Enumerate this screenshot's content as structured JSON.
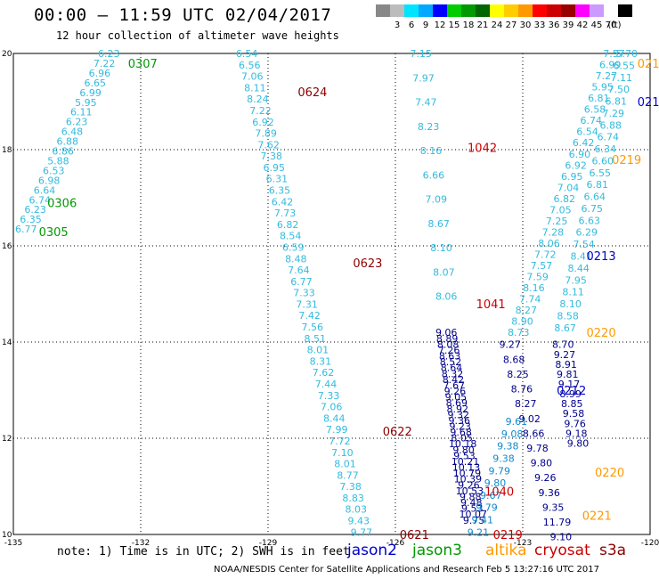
{
  "title": "00:00 – 11:59 UTC 02/04/2017",
  "subtitle": "12 hour collection of altimeter wave heights",
  "color_scale": {
    "unit": "(ft)",
    "swatches": [
      {
        "label": "",
        "color": "#888888"
      },
      {
        "label": "3",
        "color": "#bcbcbc"
      },
      {
        "label": "6",
        "color": "#00e5ff"
      },
      {
        "label": "9",
        "color": "#00a8ff"
      },
      {
        "label": "12",
        "color": "#0000ff"
      },
      {
        "label": "15",
        "color": "#00cc00"
      },
      {
        "label": "18",
        "color": "#009900"
      },
      {
        "label": "21",
        "color": "#006600"
      },
      {
        "label": "24",
        "color": "#ffff00"
      },
      {
        "label": "27",
        "color": "#ffcc00"
      },
      {
        "label": "30",
        "color": "#ff9900"
      },
      {
        "label": "33",
        "color": "#ff0000"
      },
      {
        "label": "36",
        "color": "#cc0000"
      },
      {
        "label": "39",
        "color": "#990000"
      },
      {
        "label": "42",
        "color": "#ff00ff"
      },
      {
        "label": "45",
        "color": "#cc99ff"
      },
      {
        "label": "70",
        "color": "#ffffff"
      },
      {
        "label": "",
        "color": "#000000"
      }
    ]
  },
  "chart_data": {
    "type": "scatter",
    "map_extent": {
      "lon_min": -135,
      "lon_max": -120,
      "lat_min": 10,
      "lat_max": 20
    },
    "lon_ticks": [
      "-135",
      "-132",
      "-129",
      "-126",
      "-123",
      "-120"
    ],
    "lat_ticks": [
      "20",
      "18",
      "16",
      "14",
      "12",
      "10"
    ],
    "colors": {
      "jason2": "#0000cc",
      "jason3": "#009900",
      "altika": "#ff9900",
      "cryosat": "#cc0000",
      "s3a": "#8b0000",
      "light": "#33bbdd",
      "medium": "#1188cc",
      "dark": "#00008b"
    },
    "tracks": [
      {
        "start": [
          -132.75,
          20
        ],
        "end": [
          -134.7,
          16.35
        ],
        "color": "light",
        "values": [
          "6.23",
          "7.22",
          "6.96",
          "6.65",
          "6.99",
          "5.95",
          "6.11",
          "6.23",
          "6.48",
          "6.88",
          "6.86",
          "5.88",
          "6.53",
          "6.98",
          "6.64",
          "6.74",
          "6.23",
          "6.35",
          "6.77"
        ]
      },
      {
        "start": [
          -129.5,
          20
        ],
        "end": [
          -126.8,
          10.05
        ],
        "color": "light",
        "values": [
          "6.54",
          "6.56",
          "7.06",
          "8.11",
          "8.24",
          "7.22",
          "6.92",
          "7.89",
          "7.62",
          "7.38",
          "6.95",
          "6.31",
          "6.35",
          "6.42",
          "7.73",
          "6.82",
          "8.54",
          "6.59",
          "8.48",
          "7.64",
          "6.77",
          "7.33",
          "7.31",
          "7.42",
          "7.56",
          "8.51",
          "8.01",
          "8.31",
          "7.62",
          "7.44",
          "7.33",
          "7.06",
          "8.44",
          "7.99",
          "7.72",
          "7.10",
          "8.01",
          "8.77",
          "7.38",
          "8.83",
          "8.03",
          "9.43",
          "9.77"
        ]
      },
      {
        "start": [
          -125.4,
          20
        ],
        "end": [
          -124.8,
          14.95
        ],
        "color": "light",
        "values": [
          "7.15",
          "7.97",
          "7.47",
          "8.23",
          "8.16",
          "6.66",
          "7.09",
          "8.67",
          "8.10",
          "8.07",
          "8.06"
        ]
      },
      {
        "start": [
          -124.8,
          14.2
        ],
        "end": [
          -124.15,
          10.3
        ],
        "color": "dark",
        "values": [
          "9.06",
          "8.89",
          "8.08",
          "7.26",
          "8.63",
          "8.52",
          "8.64",
          "8.32",
          "8.42",
          "7.67",
          "9.26",
          "9.05",
          "8.69",
          "8.92",
          "9.32",
          "9.36",
          "9.23",
          "9.68",
          "8.05",
          "10.18",
          "9.80",
          "9.53",
          "10.21",
          "10.13",
          "10.79",
          "10.39",
          "9.26",
          "10.53",
          "9.88",
          "9.48",
          "9.53",
          "10.07",
          "9.75"
        ]
      },
      {
        "start": [
          -123.15,
          12.35
        ],
        "end": [
          -124.05,
          10.05
        ],
        "color": "medium",
        "values": [
          "9.61",
          "9.08",
          "9.38",
          "9.38",
          "9.79",
          "9.80",
          "9.67",
          "9.79",
          "9.41",
          "9.21"
        ]
      },
      {
        "start": [
          -120.85,
          20
        ],
        "end": [
          -123.1,
          14.2
        ],
        "color": "light",
        "values": [
          "7.57",
          "6.99",
          "7.27",
          "5.95",
          "6.81",
          "6.58",
          "6.74",
          "6.54",
          "6.42",
          "6.90",
          "6.92",
          "6.95",
          "7.04",
          "6.82",
          "7.05",
          "7.25",
          "7.28",
          "8.06",
          "7.72",
          "7.57",
          "7.59",
          "8.16",
          "7.74",
          "8.27",
          "8.90",
          "8.73"
        ]
      },
      {
        "start": [
          -120.55,
          20
        ],
        "end": [
          -122.0,
          14.3
        ],
        "color": "light",
        "values": [
          "5.70",
          "6.55",
          "7.11",
          "7.50",
          "6.81",
          "7.29",
          "6.88",
          "6.74",
          "6.34",
          "6.60",
          "6.55",
          "6.81",
          "6.64",
          "6.75",
          "6.63",
          "6.29",
          "7.54",
          "8.41",
          "8.44",
          "7.95",
          "8.11",
          "8.10",
          "8.58",
          "8.67"
        ]
      },
      {
        "start": [
          -123.3,
          13.95
        ],
        "end": [
          -122.1,
          9.95
        ],
        "color": "dark",
        "values": [
          "9.27",
          "8.68",
          "8.25",
          "8.76",
          "8.27",
          "9.02",
          "8.66",
          "9.78",
          "9.80",
          "9.26",
          "9.36",
          "9.35",
          "11.79",
          "9.10"
        ]
      },
      {
        "start": [
          -122.05,
          13.95
        ],
        "end": [
          -121.7,
          11.9
        ],
        "color": "dark",
        "values": [
          "8.70",
          "9.27",
          "8.91",
          "9.81",
          "9.17",
          "8.99",
          "8.85",
          "9.58",
          "9.76",
          "9.18",
          "9.80"
        ]
      }
    ],
    "track_labels": [
      {
        "text": "0307",
        "lon": -132.3,
        "lat": 19.8,
        "color": "jason3"
      },
      {
        "text": "0306",
        "lon": -134.2,
        "lat": 16.9,
        "color": "jason3"
      },
      {
        "text": "0305",
        "lon": -134.4,
        "lat": 16.3,
        "color": "jason3"
      },
      {
        "text": "0624",
        "lon": -128.3,
        "lat": 19.2,
        "color": "s3a"
      },
      {
        "text": "0623",
        "lon": -127.0,
        "lat": 15.65,
        "color": "s3a"
      },
      {
        "text": "0622",
        "lon": -126.3,
        "lat": 12.15,
        "color": "s3a"
      },
      {
        "text": "0621",
        "lon": -125.9,
        "lat": 10.0,
        "color": "s3a"
      },
      {
        "text": "1042",
        "lon": -124.3,
        "lat": 18.05,
        "color": "cryosat"
      },
      {
        "text": "1041",
        "lon": -124.1,
        "lat": 14.8,
        "color": "cryosat"
      },
      {
        "text": "1040",
        "lon": -123.9,
        "lat": 10.9,
        "color": "cryosat"
      },
      {
        "text": "0219",
        "lon": -123.7,
        "lat": 10.0,
        "color": "cryosat"
      },
      {
        "text": "021",
        "lon": -120.3,
        "lat": 19.8,
        "color": "altika"
      },
      {
        "text": "021-",
        "lon": -120.3,
        "lat": 19.0,
        "color": "jason2"
      },
      {
        "text": "0219",
        "lon": -120.9,
        "lat": 17.8,
        "color": "altika"
      },
      {
        "text": "0213",
        "lon": -121.5,
        "lat": 15.8,
        "color": "jason2"
      },
      {
        "text": "0220",
        "lon": -121.5,
        "lat": 14.2,
        "color": "altika"
      },
      {
        "text": "0212",
        "lon": -122.2,
        "lat": 13.0,
        "color": "jason2"
      },
      {
        "text": "0220",
        "lon": -121.3,
        "lat": 11.3,
        "color": "altika"
      },
      {
        "text": "0221",
        "lon": -121.6,
        "lat": 10.4,
        "color": "altika"
      }
    ]
  },
  "note": "note: 1) Time is in UTC; 2) SWH is in feet",
  "satellites": [
    {
      "name": "jason2",
      "color": "#0000cc",
      "x": 390
    },
    {
      "name": "jason3",
      "color": "#009900",
      "x": 463
    },
    {
      "name": "altika",
      "color": "#ff9900",
      "x": 545
    },
    {
      "name": "cryosat",
      "color": "#cc0000",
      "x": 600
    },
    {
      "name": "s3a",
      "color": "#8b0000",
      "x": 673
    }
  ],
  "footer": "NOAA/NESDIS Center for Satellite Applications and Research    Feb  5 13:27:16 UTC 2017"
}
